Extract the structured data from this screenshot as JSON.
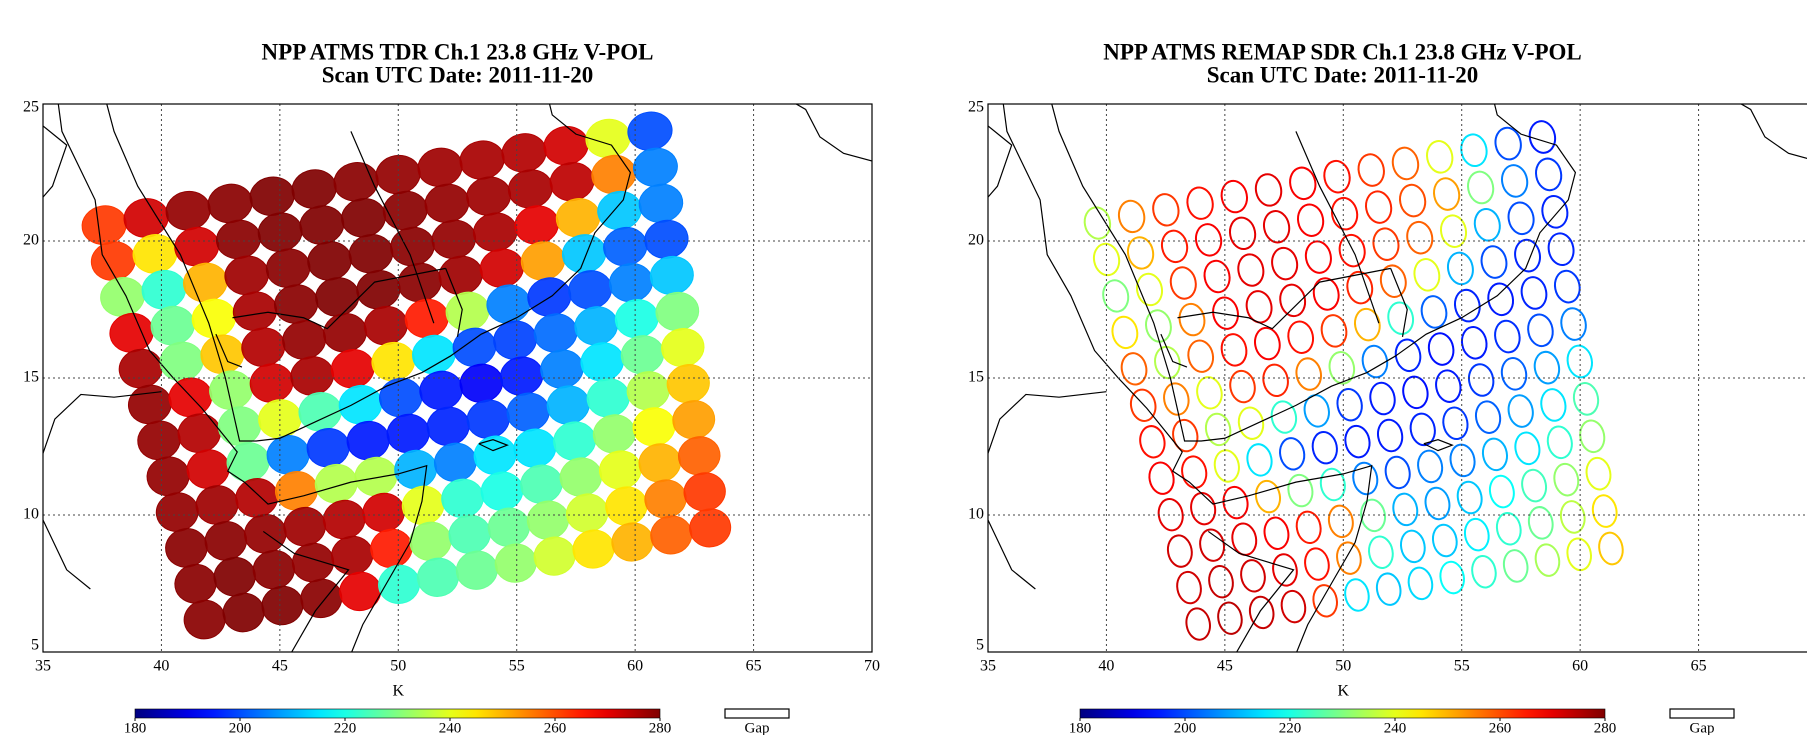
{
  "chart_data": [
    {
      "type": "swath-map",
      "title": "NPP ATMS TDR Ch.1 23.8 GHz V-POL",
      "subtitle": "Scan UTC Date: 2011-11-20",
      "xlim": [
        35,
        70
      ],
      "xticks": [
        35,
        40,
        45,
        50,
        55,
        60,
        65,
        70
      ],
      "ylim": [
        5,
        25
      ],
      "yticks": [
        5,
        10,
        15,
        20,
        25
      ],
      "grid": true,
      "colormap": "jet",
      "filled": true,
      "zlim": [
        180,
        280
      ],
      "zticks": [
        180,
        200,
        220,
        240,
        260,
        280
      ],
      "colorbar_label": "K",
      "gap_label": "Gap",
      "values": [
        [
          262,
          272,
          278,
          279,
          280,
          280,
          279,
          278,
          277,
          276,
          275,
          272,
          240,
          200
        ],
        [
          262,
          245,
          272,
          279,
          280,
          280,
          280,
          279,
          278,
          277,
          276,
          274,
          255,
          205
        ],
        [
          232,
          222,
          250,
          277,
          279,
          280,
          280,
          279,
          278,
          276,
          270,
          250,
          212,
          205
        ],
        [
          270,
          228,
          242,
          276,
          279,
          280,
          280,
          279,
          277,
          272,
          252,
          212,
          202,
          200
        ],
        [
          276,
          230,
          248,
          275,
          278,
          278,
          276,
          265,
          235,
          205,
          198,
          200,
          205,
          212
        ],
        [
          278,
          270,
          232,
          272,
          276,
          270,
          245,
          215,
          200,
          199,
          203,
          210,
          220,
          230
        ],
        [
          278,
          275,
          230,
          240,
          225,
          215,
          200,
          195,
          192,
          195,
          205,
          215,
          228,
          240
        ],
        [
          278,
          272,
          228,
          205,
          198,
          195,
          195,
          196,
          198,
          202,
          210,
          222,
          235,
          248
        ],
        [
          278,
          277,
          275,
          255,
          235,
          235,
          210,
          205,
          215,
          215,
          222,
          232,
          242,
          252
        ],
        [
          279,
          279,
          278,
          277,
          275,
          272,
          240,
          222,
          220,
          225,
          232,
          240,
          250,
          258
        ],
        [
          279,
          280,
          279,
          278,
          276,
          265,
          232,
          225,
          228,
          232,
          238,
          245,
          255,
          262
        ],
        [
          279,
          280,
          280,
          279,
          270,
          222,
          225,
          228,
          232,
          238,
          245,
          250,
          258,
          262
        ]
      ]
    },
    {
      "type": "swath-map",
      "title": "NPP ATMS REMAP SDR Ch.1 23.8 GHz V-POL",
      "subtitle": "Scan UTC Date: 2011-11-20",
      "xlim": [
        35,
        70
      ],
      "xticks": [
        35,
        40,
        45,
        50,
        55,
        60,
        65
      ],
      "ylim": [
        5,
        25
      ],
      "yticks": [
        5,
        10,
        15,
        20,
        25
      ],
      "grid": true,
      "colormap": "jet",
      "filled": false,
      "zlim": [
        180,
        280
      ],
      "zticks": [
        180,
        200,
        220,
        240,
        260,
        280
      ],
      "colorbar_label": "K",
      "gap_label": "Gap",
      "values": [
        [
          235,
          255,
          262,
          266,
          268,
          270,
          268,
          266,
          262,
          258,
          240,
          215,
          200,
          195
        ],
        [
          240,
          250,
          265,
          268,
          270,
          270,
          268,
          266,
          264,
          260,
          252,
          230,
          205,
          198
        ],
        [
          230,
          240,
          262,
          268,
          270,
          270,
          268,
          266,
          262,
          258,
          240,
          210,
          200,
          196
        ],
        [
          245,
          232,
          255,
          268,
          270,
          270,
          268,
          264,
          258,
          240,
          210,
          200,
          196,
          196
        ],
        [
          258,
          235,
          258,
          266,
          268,
          266,
          262,
          250,
          222,
          202,
          196,
          195,
          196,
          198
        ],
        [
          262,
          255,
          240,
          262,
          264,
          255,
          232,
          205,
          196,
          194,
          195,
          197,
          200,
          205
        ],
        [
          266,
          262,
          235,
          240,
          222,
          208,
          198,
          195,
          194,
          195,
          198,
          202,
          208,
          215
        ],
        [
          268,
          266,
          240,
          215,
          200,
          196,
          195,
          195,
          196,
          198,
          202,
          208,
          215,
          225
        ],
        [
          270,
          270,
          268,
          250,
          230,
          222,
          205,
          200,
          205,
          205,
          210,
          215,
          222,
          232
        ],
        [
          272,
          272,
          270,
          268,
          265,
          255,
          228,
          210,
          208,
          212,
          218,
          224,
          232,
          240
        ],
        [
          272,
          273,
          272,
          270,
          266,
          255,
          222,
          212,
          212,
          216,
          222,
          228,
          236,
          245
        ],
        [
          273,
          274,
          273,
          272,
          262,
          215,
          212,
          214,
          218,
          222,
          228,
          234,
          240,
          248
        ]
      ]
    }
  ]
}
